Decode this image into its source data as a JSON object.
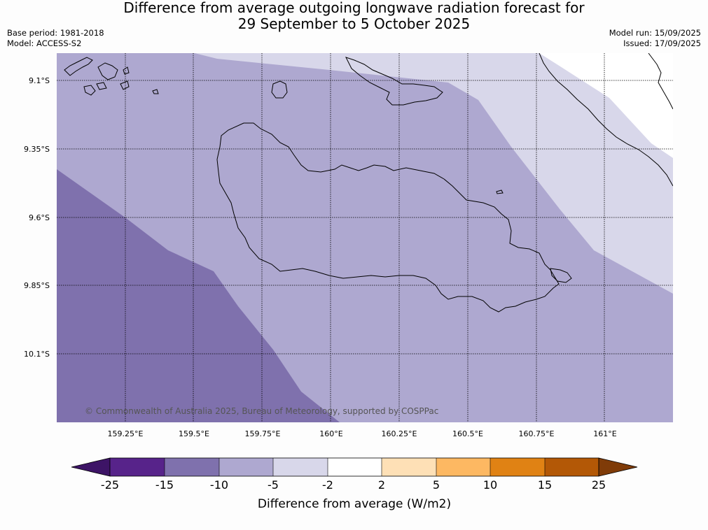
{
  "title_line1": "Difference from average outgoing longwave radiation forecast for",
  "title_line2": "29 September to 5 October 2025",
  "base_period": "Base period: 1981-2018",
  "model": "Model: ACCESS-S2",
  "model_run": "Model run: 15/09/2025",
  "issued": "Issued: 17/09/2025",
  "copyright": "© Commonwealth of Australia 2025, Bureau of Meteorology, supported by COSPPac",
  "lat_labels": [
    "9.1°S",
    "9.35°S",
    "9.6°S",
    "9.85°S",
    "10.1°S"
  ],
  "lon_labels": [
    "159.25°E",
    "159.5°E",
    "159.75°E",
    "160°E",
    "160.25°E",
    "160.5°E",
    "160.75°E",
    "161°E"
  ],
  "colorbar": {
    "title": "Difference from average (W/m2)",
    "ticks": [
      "-25",
      "-15",
      "-10",
      "-5",
      "-2",
      "2",
      "5",
      "10",
      "15",
      "25"
    ],
    "colors": [
      "#3d1466",
      "#57238a",
      "#7f71ad",
      "#aea8d0",
      "#d8d7ea",
      "#ffffff",
      "#fee0b6",
      "#fdb862",
      "#e08214",
      "#b35806",
      "#7f3b08"
    ]
  },
  "legend_colors": {
    "class_-15_-10": "#7f71ad",
    "class_-10_-5": "#aea8d0",
    "class_-5_-2": "#d8d7ea",
    "land_outline": "#000000"
  }
}
